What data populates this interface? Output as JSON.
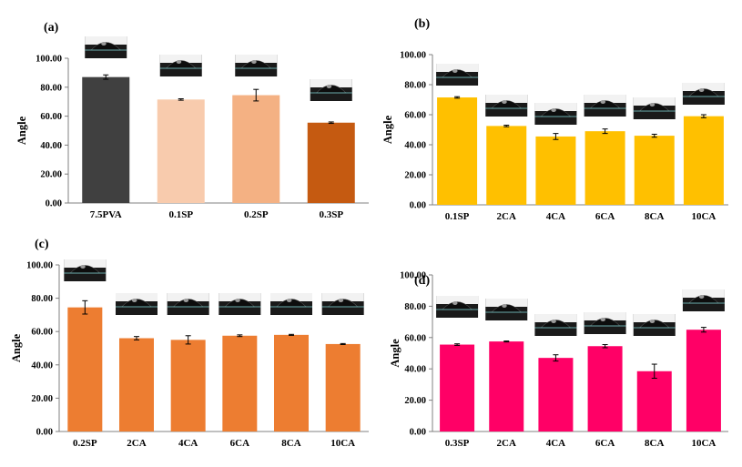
{
  "chart_data": [
    {
      "type": "bar",
      "panel_label": "(a)",
      "ylabel": "Angle",
      "xlabel": "",
      "ylim": [
        0,
        100
      ],
      "yticks": [
        "0.00",
        "20.00",
        "40.00",
        "60.00",
        "80.00",
        "100.00"
      ],
      "categories": [
        "7.5PVA",
        "0.1SP",
        "0.2SP",
        "0.3SP"
      ],
      "values": [
        87,
        71.5,
        74.5,
        55.5
      ],
      "errors": [
        1.5,
        0.5,
        4,
        0.5
      ],
      "colors": [
        "#404040",
        "#F8CBAD",
        "#F4B183",
        "#C55A11"
      ]
    },
    {
      "type": "bar",
      "panel_label": "(b)",
      "ylabel": "Angle",
      "xlabel": "",
      "ylim": [
        0,
        100
      ],
      "yticks": [
        "0.00",
        "20.00",
        "40.00",
        "60.00",
        "80.00",
        "100.00"
      ],
      "categories": [
        "0.1SP",
        "2CA",
        "4CA",
        "6CA",
        "8CA",
        "10CA"
      ],
      "values": [
        71.5,
        52.5,
        45.5,
        49,
        46,
        59
      ],
      "errors": [
        0.5,
        0.5,
        2,
        1.5,
        1,
        1
      ],
      "colors": [
        "#FFC000",
        "#FFC000",
        "#FFC000",
        "#FFC000",
        "#FFC000",
        "#FFC000"
      ]
    },
    {
      "type": "bar",
      "panel_label": "(c)",
      "ylabel": "Angle",
      "xlabel": "",
      "ylim": [
        0,
        100
      ],
      "yticks": [
        "0.00",
        "20.00",
        "40.00",
        "60.00",
        "80.00",
        "100.00"
      ],
      "categories": [
        "0.2SP",
        "2CA",
        "4CA",
        "6CA",
        "8CA",
        "10CA"
      ],
      "values": [
        74.5,
        56,
        55,
        57.5,
        58,
        52.5
      ],
      "errors": [
        4,
        1,
        2.5,
        0.5,
        0.3,
        0.3
      ],
      "colors": [
        "#ED7D31",
        "#ED7D31",
        "#ED7D31",
        "#ED7D31",
        "#ED7D31",
        "#ED7D31"
      ]
    },
    {
      "type": "bar",
      "panel_label": "(d)",
      "ylabel": "Angle",
      "xlabel": "",
      "ylim": [
        0,
        100
      ],
      "yticks": [
        "0.00",
        "20.00",
        "40.00",
        "60.00",
        "80.00",
        "100.00"
      ],
      "categories": [
        "0.3SP",
        "2CA",
        "4CA",
        "6CA",
        "8CA",
        "10CA"
      ],
      "values": [
        55.5,
        57.5,
        47,
        54.5,
        38.5,
        65
      ],
      "errors": [
        0.5,
        0.3,
        2,
        1,
        4.5,
        1.5
      ],
      "colors": [
        "#FF0066",
        "#FF0066",
        "#FF0066",
        "#FF0066",
        "#FF0066",
        "#FF0066"
      ]
    }
  ]
}
